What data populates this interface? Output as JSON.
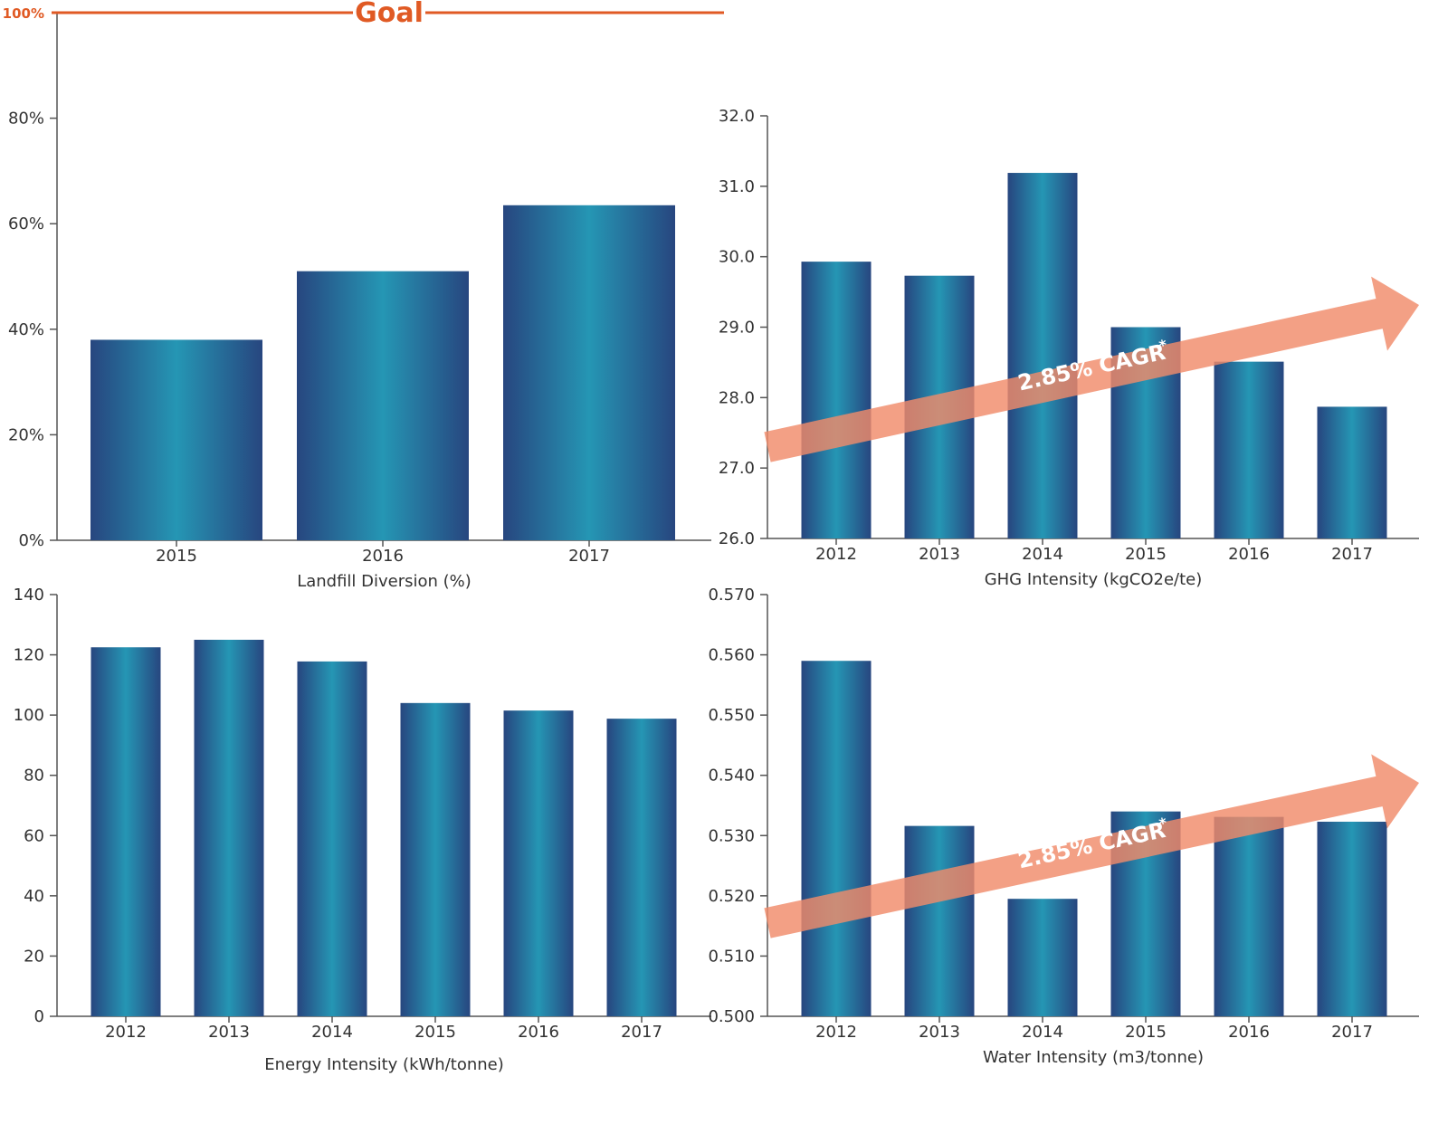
{
  "colors": {
    "bar_edge": "#27467f",
    "bar_mid": "#2596b4",
    "axis": "#555555",
    "text": "#333333",
    "goal": "#e05a24",
    "arrow": "#f08b6a"
  },
  "chart_data": [
    {
      "type": "bar",
      "xlabel": "Landfill Diversion (%)",
      "categories": [
        "2015",
        "2016",
        "2017"
      ],
      "values": [
        38,
        51,
        63.5
      ],
      "ylim": [
        0,
        100
      ],
      "y_ticks": [
        "0%",
        "20%",
        "40%",
        "60%",
        "80%",
        "100%"
      ],
      "goal": {
        "label": "Goal",
        "value": 100,
        "tick_label": "100%"
      },
      "grid": false,
      "legend": "none"
    },
    {
      "type": "bar",
      "xlabel": "GHG Intensity (kgCO2e/te)",
      "categories": [
        "2012",
        "2013",
        "2014",
        "2015",
        "2016",
        "2017"
      ],
      "values": [
        29.93,
        29.73,
        31.19,
        29.0,
        28.51,
        27.87
      ],
      "ylim": [
        26.0,
        32.0
      ],
      "y_ticks": [
        "26.0",
        "27.0",
        "28.0",
        "29.0",
        "30.0",
        "31.0",
        "32.0"
      ],
      "annotation": {
        "text": "2.85% CAGR",
        "marker": "*"
      },
      "grid": false,
      "legend": "none"
    },
    {
      "type": "bar",
      "xlabel": "Energy Intensity (kWh/tonne)",
      "categories": [
        "2012",
        "2013",
        "2014",
        "2015",
        "2016",
        "2017"
      ],
      "values": [
        122.5,
        125.0,
        117.8,
        104.0,
        101.5,
        98.8
      ],
      "ylim": [
        0,
        140
      ],
      "y_ticks": [
        "0",
        "20",
        "40",
        "60",
        "80",
        "100",
        "120",
        "140"
      ],
      "grid": false,
      "legend": "none"
    },
    {
      "type": "bar",
      "xlabel": "Water Intensity (m3/tonne)",
      "categories": [
        "2012",
        "2013",
        "2014",
        "2015",
        "2016",
        "2017"
      ],
      "values": [
        0.559,
        0.5316,
        0.5195,
        0.534,
        0.5331,
        0.5323
      ],
      "ylim": [
        0.5,
        0.57
      ],
      "y_ticks": [
        "0.500",
        "0.510",
        "0.520",
        "0.530",
        "0.540",
        "0.550",
        "0.560",
        "0.570"
      ],
      "annotation": {
        "text": "2.85% CAGR",
        "marker": "*"
      },
      "grid": false,
      "legend": "none"
    }
  ]
}
